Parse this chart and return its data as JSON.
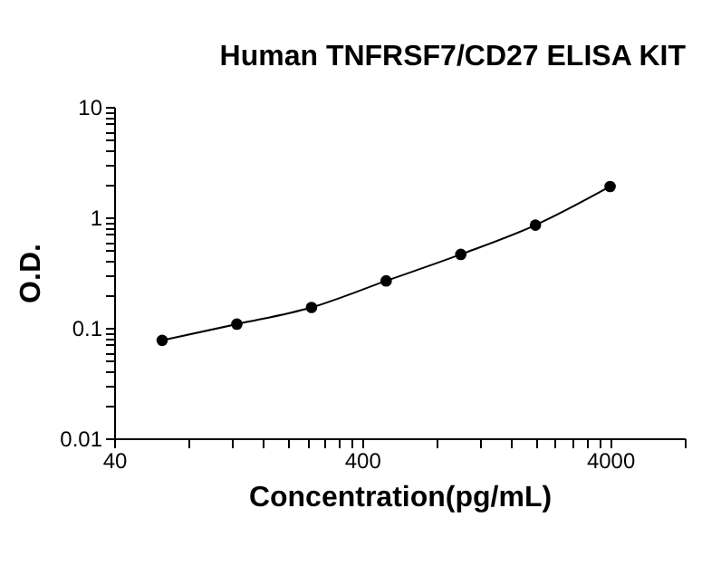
{
  "chart_data": {
    "type": "line",
    "title": "Human TNFRSF7/CD27 ELISA KIT",
    "xlabel": "Concentration(pg/mL)",
    "ylabel": "O.D.",
    "log": "xy",
    "grid": false,
    "marker": "circle",
    "line_style": "solid",
    "x": [
      62.5,
      125,
      250,
      500,
      1000,
      2000,
      4000
    ],
    "series": [
      {
        "color": "#000000",
        "values": [
          0.077,
          0.108,
          0.153,
          0.266,
          0.462,
          0.85,
          1.9
        ]
      }
    ],
    "xlim": [
      40,
      8000
    ],
    "ylim": [
      0.01,
      10
    ],
    "xticks": [
      40,
      {
        "value": 80,
        "label": null
      },
      {
        "value": 120,
        "label": null
      },
      {
        "value": 160,
        "label": null
      },
      {
        "value": 200,
        "label": null
      },
      {
        "value": 240,
        "label": null
      },
      {
        "value": 280,
        "label": null
      },
      {
        "value": 320,
        "label": null
      },
      {
        "value": 360,
        "label": null
      },
      400,
      {
        "value": 800,
        "label": null
      },
      {
        "value": 1200,
        "label": null
      },
      {
        "value": 1600,
        "label": null
      },
      {
        "value": 2000,
        "label": null
      },
      {
        "value": 2400,
        "label": null
      },
      {
        "value": 2800,
        "label": null
      },
      {
        "value": 3200,
        "label": null
      },
      {
        "value": 3600,
        "label": null
      },
      4000,
      {
        "value": 8000,
        "label": null
      }
    ],
    "yticks": [
      0.01,
      {
        "value": 0.02,
        "label": null
      },
      {
        "value": 0.03,
        "label": null
      },
      {
        "value": 0.04,
        "label": null
      },
      {
        "value": 0.05,
        "label": null
      },
      {
        "value": 0.06,
        "label": null
      },
      {
        "value": 0.07,
        "label": null
      },
      {
        "value": 0.08,
        "label": null
      },
      {
        "value": 0.09,
        "label": null
      },
      0.1,
      {
        "value": 0.2,
        "label": null
      },
      {
        "value": 0.3,
        "label": null
      },
      {
        "value": 0.4,
        "label": null
      },
      {
        "value": 0.5,
        "label": null
      },
      {
        "value": 0.6,
        "label": null
      },
      {
        "value": 0.7,
        "label": null
      },
      {
        "value": 0.8,
        "label": null
      },
      {
        "value": 0.9,
        "label": null
      },
      1,
      {
        "value": 2,
        "label": null
      },
      {
        "value": 3,
        "label": null
      },
      {
        "value": 4,
        "label": null
      },
      {
        "value": 5,
        "label": null
      },
      {
        "value": 6,
        "label": null
      },
      {
        "value": 7,
        "label": null
      },
      {
        "value": 8,
        "label": null
      },
      {
        "value": 9,
        "label": null
      },
      10
    ]
  }
}
